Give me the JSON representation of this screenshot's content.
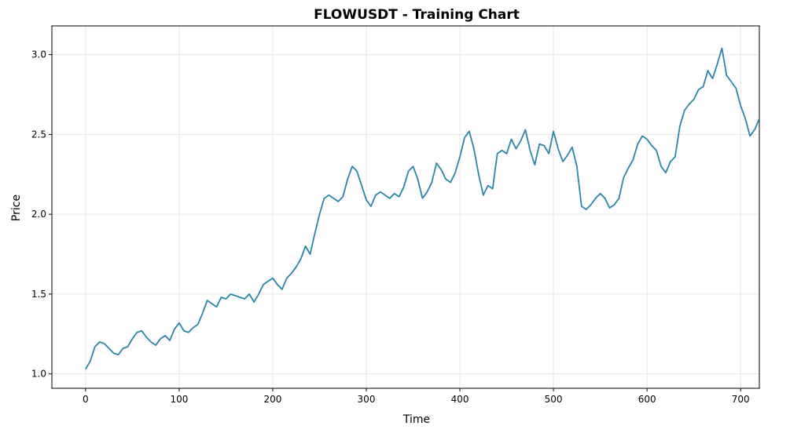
{
  "chart_data": {
    "type": "line",
    "title": "FLOWUSDT - Training Chart",
    "xlabel": "Time",
    "ylabel": "Price",
    "xlim": [
      -36,
      720
    ],
    "ylim": [
      0.91,
      3.18
    ],
    "x_ticks": [
      0,
      100,
      200,
      300,
      400,
      500,
      600,
      700
    ],
    "y_ticks": [
      1.0,
      1.5,
      2.0,
      2.5,
      3.0
    ],
    "x_tick_labels": [
      "0",
      "100",
      "200",
      "300",
      "400",
      "500",
      "600",
      "700"
    ],
    "y_tick_labels": [
      "1.0",
      "1.5",
      "2.0",
      "2.5",
      "3.0"
    ],
    "grid": true,
    "line_color": "#2a86a8",
    "series": [
      {
        "x": [
          0,
          5,
          10,
          15,
          20,
          25,
          30,
          35,
          40,
          45,
          50,
          55,
          60,
          65,
          70,
          75,
          80,
          85,
          90,
          95,
          100,
          105,
          110,
          115,
          120,
          125,
          130,
          135,
          140,
          145,
          150,
          155,
          160,
          165,
          170,
          175,
          180,
          185,
          190,
          195,
          200,
          205,
          210,
          215,
          220,
          225,
          230,
          235,
          240,
          245,
          250,
          255,
          260,
          265,
          270,
          275,
          280,
          285,
          290,
          295,
          300,
          305,
          310,
          315,
          320,
          325,
          330,
          335,
          340,
          345,
          350,
          355,
          360,
          365,
          370,
          375,
          380,
          385,
          390,
          395,
          400,
          405,
          410,
          415,
          420,
          425,
          430,
          435,
          440,
          445,
          450,
          455,
          460,
          465,
          470,
          475,
          480,
          485,
          490,
          495,
          500,
          505,
          510,
          515,
          520,
          525,
          530,
          535,
          540,
          545,
          550,
          555,
          560,
          565,
          570,
          575,
          580,
          585,
          590,
          595,
          600,
          605,
          610,
          615,
          620,
          625,
          630,
          635,
          640,
          645,
          650,
          655,
          660,
          665,
          670,
          675,
          680,
          685,
          690,
          695,
          700,
          705,
          710,
          715,
          720
        ],
        "values": [
          1.03,
          1.08,
          1.17,
          1.2,
          1.19,
          1.16,
          1.13,
          1.12,
          1.16,
          1.17,
          1.22,
          1.26,
          1.27,
          1.23,
          1.2,
          1.18,
          1.22,
          1.24,
          1.21,
          1.28,
          1.32,
          1.27,
          1.26,
          1.29,
          1.31,
          1.38,
          1.46,
          1.44,
          1.42,
          1.48,
          1.47,
          1.5,
          1.49,
          1.48,
          1.47,
          1.5,
          1.45,
          1.5,
          1.56,
          1.58,
          1.6,
          1.56,
          1.53,
          1.6,
          1.63,
          1.67,
          1.72,
          1.8,
          1.75,
          1.88,
          2.0,
          2.1,
          2.12,
          2.1,
          2.08,
          2.11,
          2.22,
          2.3,
          2.27,
          2.18,
          2.09,
          2.05,
          2.12,
          2.14,
          2.12,
          2.1,
          2.13,
          2.11,
          2.17,
          2.27,
          2.3,
          2.22,
          2.1,
          2.14,
          2.2,
          2.32,
          2.28,
          2.22,
          2.2,
          2.26,
          2.36,
          2.48,
          2.52,
          2.41,
          2.25,
          2.12,
          2.18,
          2.16,
          2.38,
          2.4,
          2.38,
          2.47,
          2.41,
          2.46,
          2.53,
          2.4,
          2.31,
          2.44,
          2.43,
          2.38,
          2.52,
          2.41,
          2.33,
          2.37,
          2.42,
          2.3,
          2.05,
          2.03,
          2.06,
          2.1,
          2.13,
          2.1,
          2.04,
          2.06,
          2.1,
          2.23,
          2.29,
          2.34,
          2.44,
          2.49,
          2.47,
          2.43,
          2.4,
          2.3,
          2.26,
          2.33,
          2.36,
          2.55,
          2.65,
          2.69,
          2.72,
          2.78,
          2.8,
          2.9,
          2.85,
          2.94,
          3.04,
          2.87,
          2.83,
          2.79,
          2.68,
          2.6,
          2.49,
          2.53,
          2.6
        ]
      }
    ]
  }
}
